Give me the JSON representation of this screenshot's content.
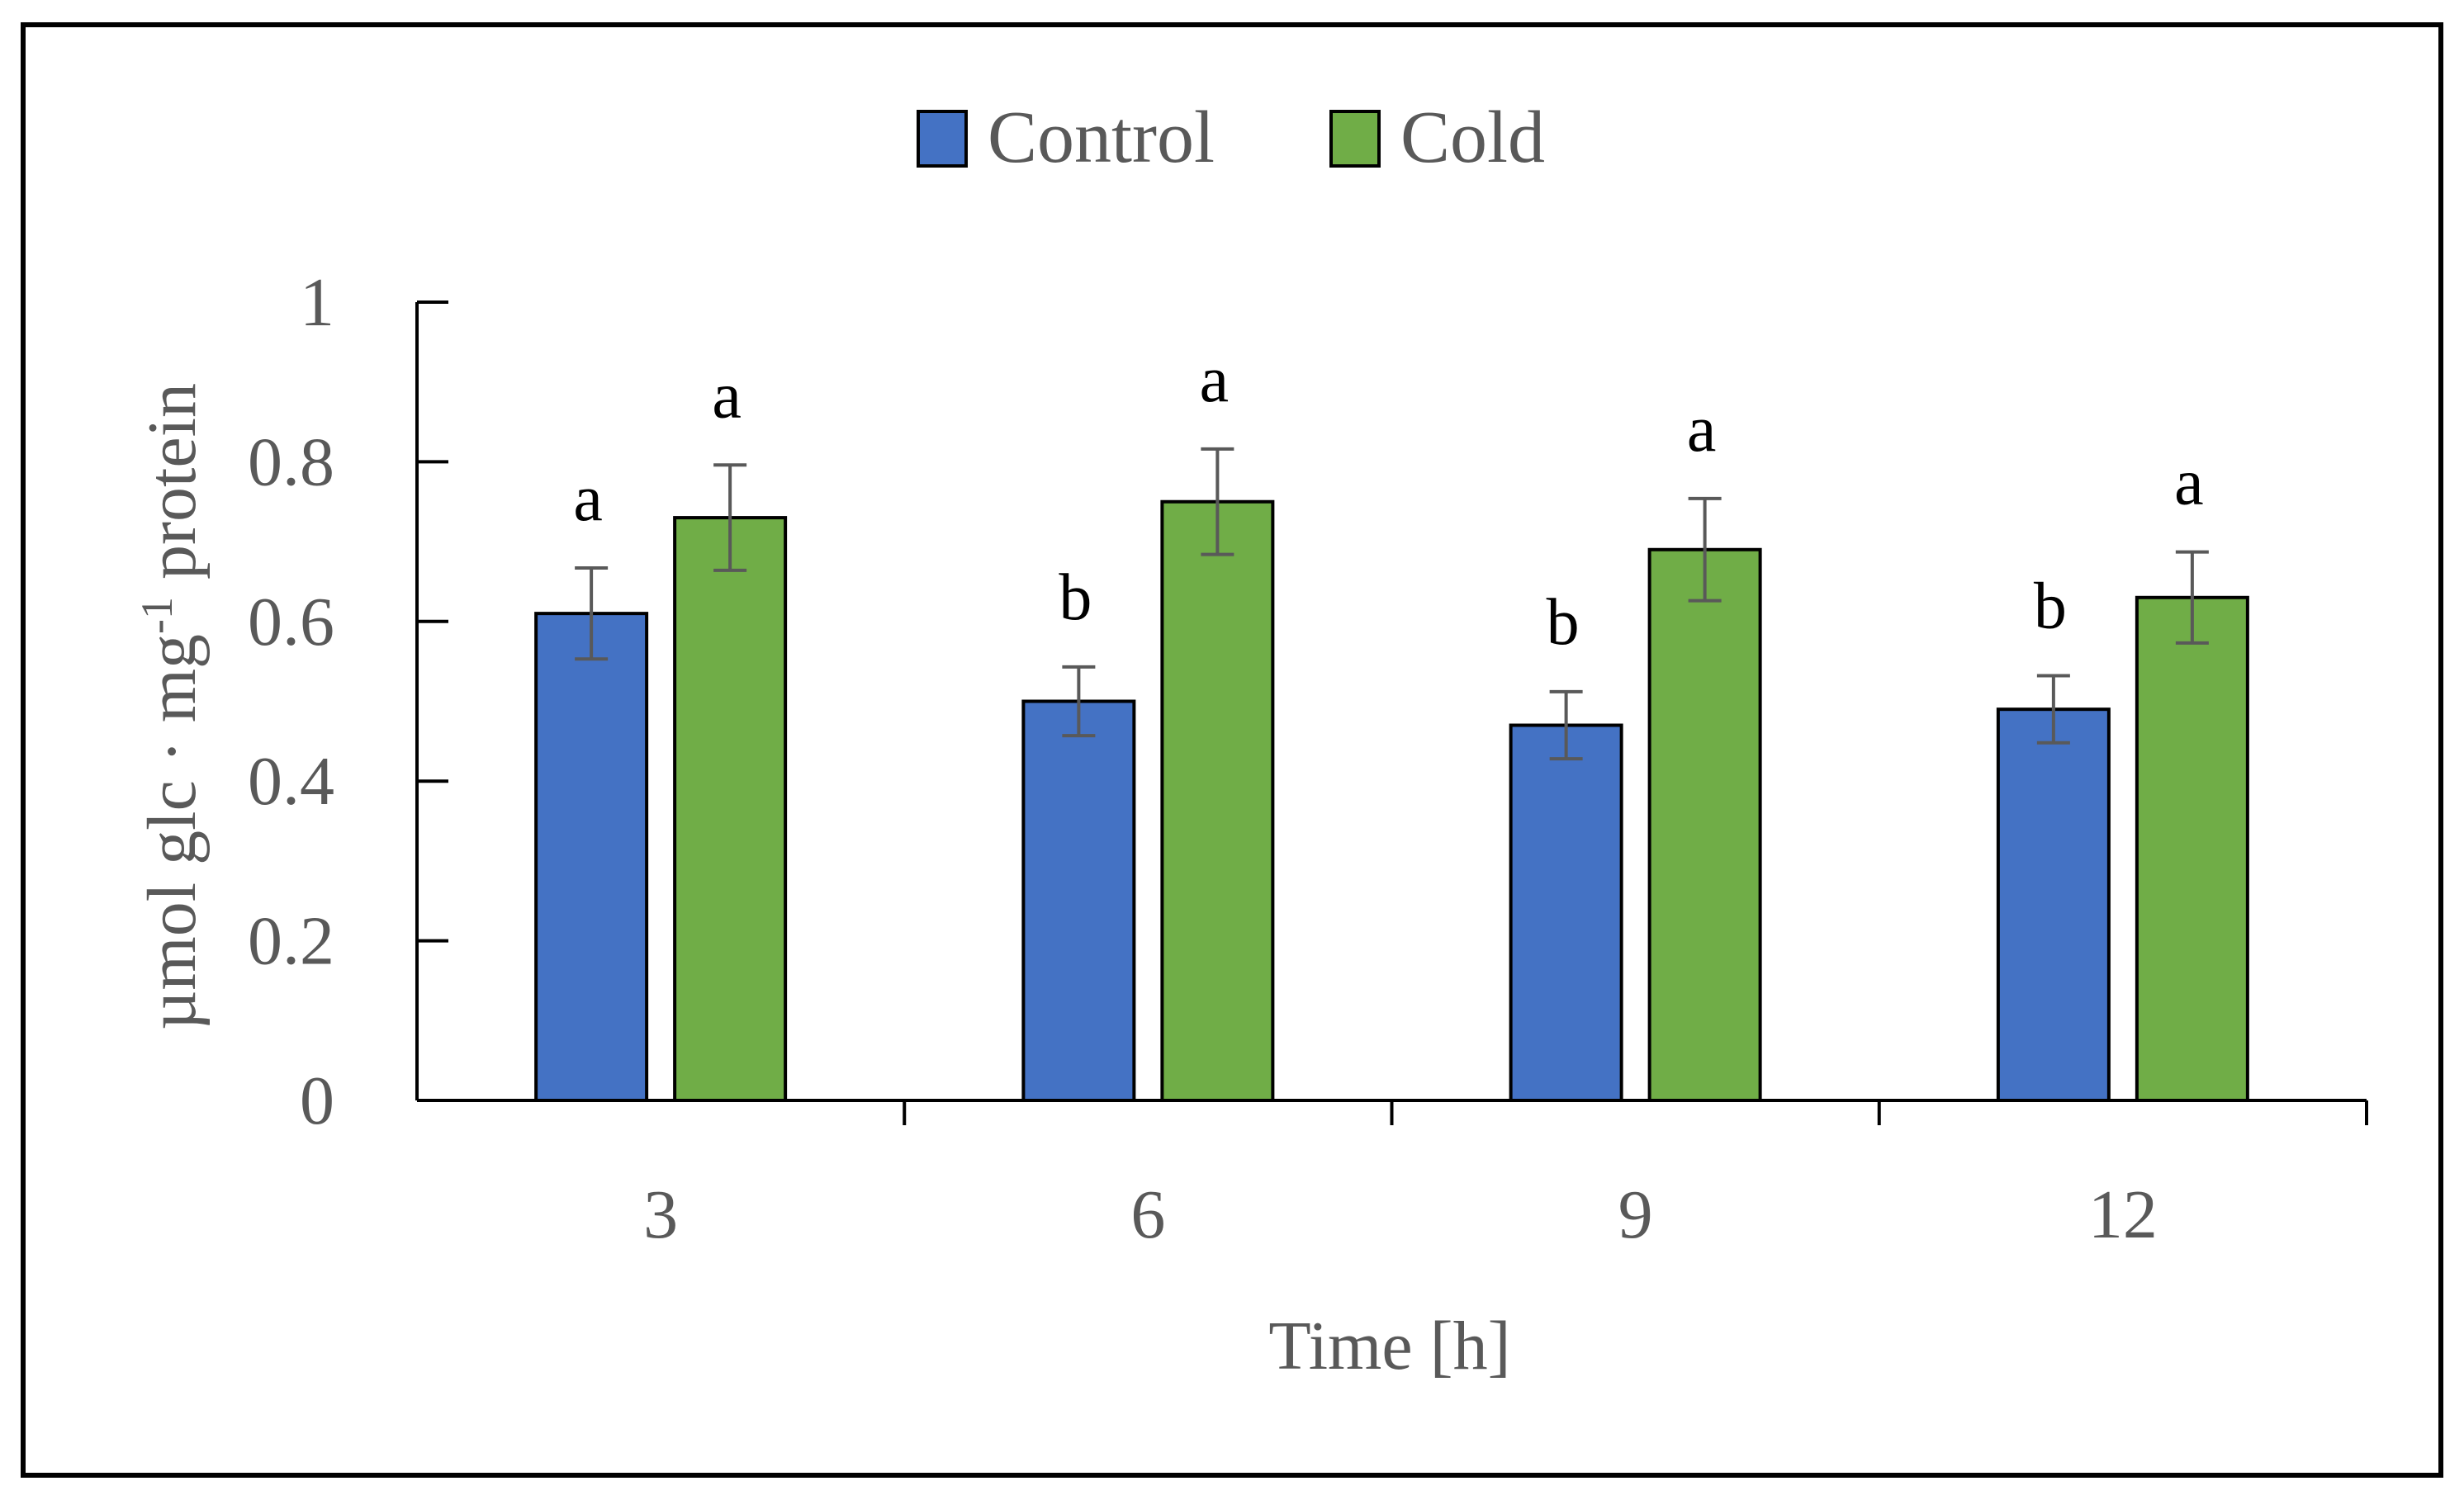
{
  "chart_data": {
    "type": "bar",
    "categories": [
      "3",
      "6",
      "9",
      "12"
    ],
    "series": [
      {
        "name": "Control",
        "color": "#4472C4",
        "values": [
          0.61,
          0.5,
          0.47,
          0.49
        ],
        "errors": [
          0.057,
          0.043,
          0.042,
          0.042
        ],
        "letters": [
          "a",
          "b",
          "b",
          "b"
        ]
      },
      {
        "name": "Cold",
        "color": "#70AD47",
        "values": [
          0.73,
          0.75,
          0.69,
          0.63
        ],
        "errors": [
          0.066,
          0.066,
          0.064,
          0.057
        ],
        "letters": [
          "a",
          "a",
          "a",
          "a"
        ]
      }
    ],
    "xlabel": "Time [h]",
    "ylabel_main": "µmol glc · mg",
    "ylabel_sup": "-1",
    "ylabel_tail": " protein",
    "ylim": [
      0,
      1
    ],
    "yticks": [
      0,
      0.2,
      0.4,
      0.6,
      0.8,
      1
    ],
    "ytick_labels": [
      "0",
      "0.2",
      "0.4",
      "0.6",
      "0.8",
      "1"
    ],
    "legend_position": "top-center",
    "grid": false
  }
}
